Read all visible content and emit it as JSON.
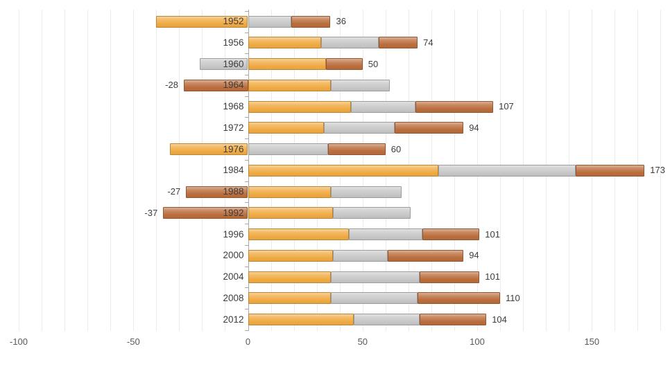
{
  "chart_data": {
    "type": "bar",
    "orientation": "horizontal",
    "stacked": true,
    "title": "",
    "legend": "none",
    "grid": "vertical-only",
    "background_color": "#ffffff",
    "categories": [
      "1952",
      "1956",
      "1960",
      "1964",
      "1968",
      "1972",
      "1976",
      "1984",
      "1988",
      "1992",
      "1996",
      "2000",
      "2004",
      "2008",
      "2012"
    ],
    "series": [
      {
        "name": "series-1-orange",
        "color": "#F0AB44",
        "values": [
          -40,
          32,
          34,
          36,
          45,
          33,
          -34,
          83,
          36,
          37,
          44,
          37,
          36,
          36,
          46
        ]
      },
      {
        "name": "series-2-gray",
        "color": "#C8C8C8",
        "values": [
          19,
          25,
          -21,
          26,
          28,
          31,
          35,
          60,
          31,
          34,
          32,
          24,
          39,
          38,
          29
        ]
      },
      {
        "name": "series-3-brown",
        "color": "#BB6E3D",
        "values": [
          17,
          17,
          16,
          -28,
          34,
          30,
          25,
          30,
          -27,
          -37,
          25,
          33,
          26,
          36,
          29
        ]
      }
    ],
    "data_labels": [
      "36",
      "74",
      "50",
      "-28",
      "107",
      "94",
      "60",
      "173",
      "-27",
      "-37",
      "101",
      "94",
      "101",
      "110",
      "104"
    ],
    "x_axis": {
      "tick_labels": [
        "-100",
        "-50",
        "0",
        "50",
        "100",
        "150"
      ],
      "tick_values": [
        -100,
        -50,
        0,
        50,
        100,
        150
      ],
      "range": [
        -108.2,
        184.1
      ],
      "gridline_step": 10
    },
    "colors": {
      "gridline": "#ebebeb",
      "axis_line": "#a6a6a6",
      "data_label_text": "#3d3d3d",
      "axis_label_text": "#595959"
    }
  }
}
